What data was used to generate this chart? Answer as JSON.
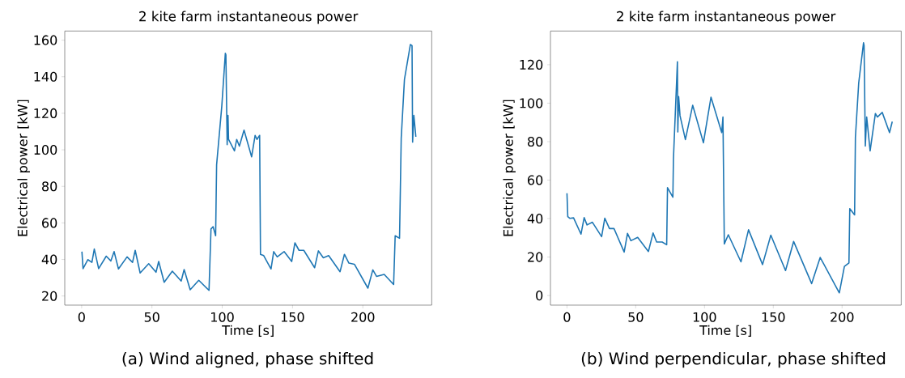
{
  "chart_data": [
    {
      "type": "line",
      "title": "2 kite farm instantaneous power",
      "xlabel": "Time [s]",
      "ylabel": "Electrical power [kW]",
      "color": "#1f77b4",
      "xlim": [
        -12,
        249
      ],
      "ylim": [
        15,
        165
      ],
      "xticks": [
        0,
        50,
        100,
        150,
        200
      ],
      "yticks": [
        20,
        40,
        60,
        80,
        100,
        120,
        140,
        160
      ],
      "annotations": [
        "(a) Wind aligned, phase shifted"
      ],
      "x": [
        0.2,
        1,
        4.4,
        7.3,
        9.0,
        12.1,
        17.5,
        20.8,
        23.1,
        26.2,
        32.3,
        36.2,
        38.1,
        41.6,
        47.7,
        52.9,
        54.8,
        58.7,
        64.5,
        70.8,
        72.9,
        77.2,
        83.3,
        90.6,
        92.0,
        93.5,
        95.3,
        96.0,
        99.7,
        102.2,
        102.6,
        103.5,
        104.1,
        104.5,
        108.7,
        110.3,
        112.2,
        115.5,
        120.9,
        123.4,
        124.7,
        126.6,
        127.2,
        129.5,
        134.7,
        136.6,
        139.1,
        144.0,
        149.4,
        151.7,
        154.6,
        158.0,
        165.7,
        168.4,
        171.9,
        175.7,
        183.8,
        186.9,
        190.1,
        194.0,
        203.6,
        207.1,
        209.8,
        215.2,
        221.9,
        223.0,
        226.1,
        227.3,
        229.6,
        233.8,
        235.0,
        235.4,
        236.3,
        237.7
      ],
      "values": [
        44.3,
        35.0,
        39.9,
        38.4,
        45.7,
        35.0,
        41.8,
        39.2,
        44.3,
        34.8,
        41.4,
        38.4,
        45.0,
        32.6,
        37.7,
        33.0,
        38.9,
        27.5,
        33.6,
        28.2,
        34.5,
        23.4,
        28.6,
        23.1,
        56.7,
        57.9,
        53.0,
        91.8,
        124,
        152.8,
        152,
        102.8,
        118.8,
        105.7,
        99.4,
        105.7,
        102.0,
        110.8,
        96.2,
        107.9,
        105.7,
        107.9,
        42.8,
        42.1,
        34.8,
        44.3,
        41.4,
        44.3,
        38.9,
        49.1,
        45.0,
        45.0,
        35.5,
        44.7,
        40.9,
        42.1,
        33.3,
        42.8,
        38.0,
        37.4,
        24.3,
        34.3,
        30.7,
        31.8,
        26.3,
        53.0,
        51.6,
        106.4,
        138.5,
        157.6,
        157,
        104.2,
        118.8,
        107.1
      ]
    },
    {
      "type": "line",
      "title": "2 kite farm instantaneous power",
      "xlabel": "Time [s]",
      "ylabel": "Electrical power [kW]",
      "color": "#1f77b4",
      "xlim": [
        -12,
        243
      ],
      "ylim": [
        -5,
        137.5
      ],
      "xticks": [
        0,
        50,
        100,
        150,
        200
      ],
      "yticks": [
        0,
        20,
        40,
        60,
        80,
        100,
        120
      ],
      "annotations": [
        "(b) Wind perpendicular, phase shifted"
      ],
      "x": [
        0,
        0.6,
        2.2,
        4.8,
        10.2,
        12.5,
        14.6,
        18.5,
        25.2,
        27.5,
        30.9,
        34.2,
        41.6,
        44.0,
        46.5,
        51.4,
        59.2,
        62.6,
        65.2,
        69.2,
        72.5,
        73.1,
        77.0,
        77.4,
        80.3,
        80.6,
        81.2,
        82.2,
        86.1,
        91.4,
        99.2,
        104.7,
        112.5,
        113.4,
        114.4,
        117.3,
        126.5,
        132.0,
        142.2,
        148.2,
        158.9,
        164.8,
        177.9,
        184.1,
        198.0,
        201.7,
        205.0,
        205.6,
        209.1,
        209.7,
        212.1,
        215.6,
        216.0,
        216.9,
        217.9,
        220.4,
        224.2,
        225.7,
        229.2,
        234.5,
        236.5
      ],
      "values": [
        53.2,
        41.0,
        40.1,
        40.4,
        31.9,
        40.5,
        36.7,
        38.1,
        30.6,
        40.2,
        34.8,
        34.8,
        22.6,
        32.3,
        28.5,
        30.2,
        22.9,
        32.5,
        27.8,
        27.8,
        26.4,
        56.1,
        51.1,
        70.9,
        121.5,
        85.0,
        103.4,
        93.5,
        81.1,
        98.9,
        79.4,
        103.1,
        84.7,
        92.8,
        26.8,
        31.6,
        17.5,
        34.2,
        16.1,
        31.4,
        13.0,
        28.1,
        6.2,
        19.8,
        1.4,
        15.1,
        16.9,
        45.2,
        41.9,
        82.2,
        110.5,
        131.4,
        130,
        77.7,
        92.8,
        75.2,
        94.6,
        92.8,
        95.2,
        84.7,
        90.4
      ]
    }
  ]
}
